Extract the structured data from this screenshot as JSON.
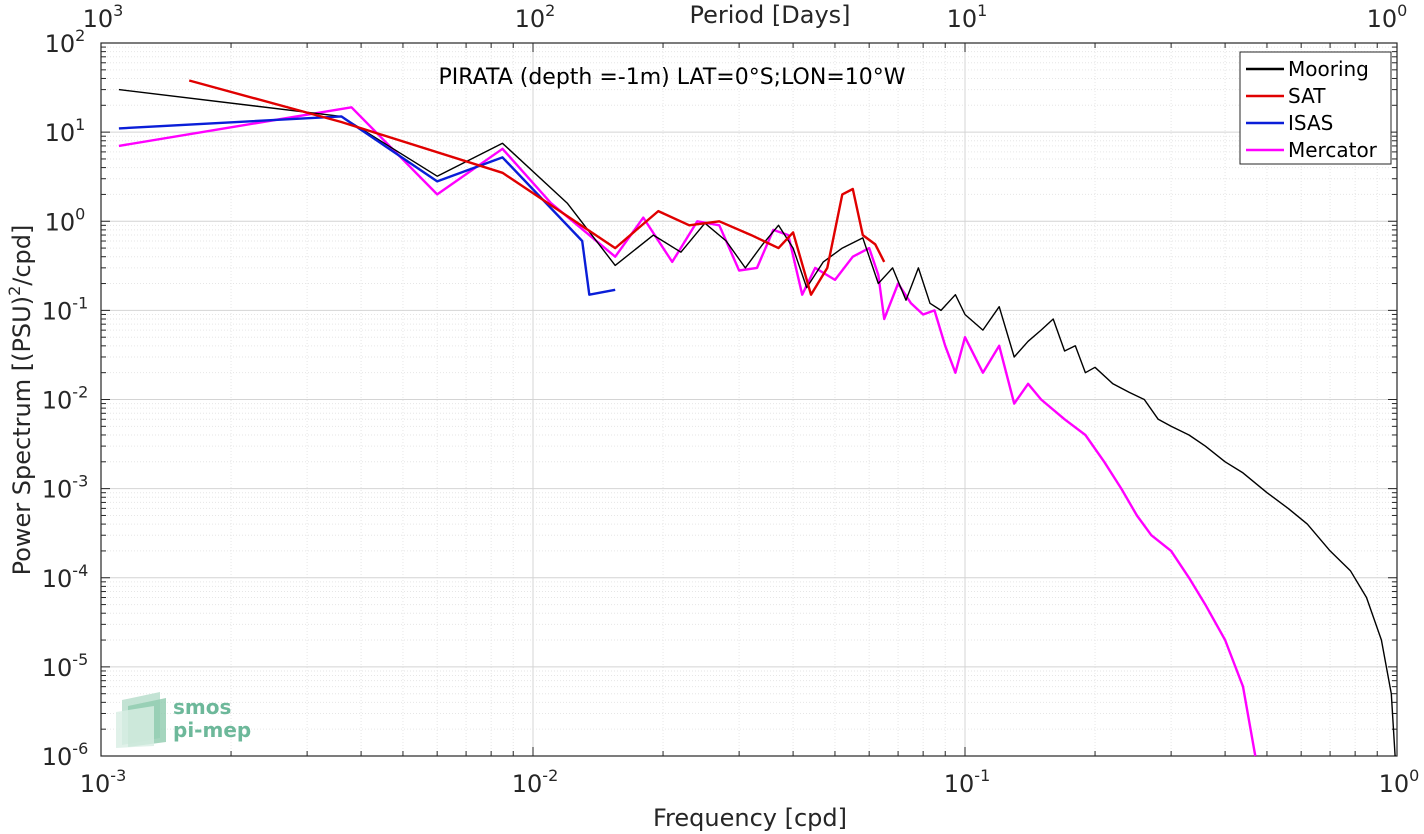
{
  "chart_data": {
    "type": "line",
    "title": "PIRATA (depth =-1m) LAT=0°S;LON=10°W",
    "xlabel": "Frequency [cpd]",
    "ylabel_main": "Power Spectrum [(PSU)",
    "ylabel_sup": "2",
    "ylabel_tail": "/cpd]",
    "top_xlabel": "Period [Days]",
    "xscale": "log",
    "yscale": "log",
    "xlim": [
      0.001,
      1
    ],
    "ylim": [
      1e-06,
      100
    ],
    "grid": true,
    "legend_position": "top-right",
    "x_ticks": [
      {
        "base": "10",
        "exp": "-3"
      },
      {
        "base": "10",
        "exp": "-2"
      },
      {
        "base": "10",
        "exp": "-1"
      },
      {
        "base": "10",
        "exp": "0"
      }
    ],
    "top_ticks": [
      {
        "base": "10",
        "exp": "3"
      },
      {
        "base": "10",
        "exp": "2"
      },
      {
        "base": "10",
        "exp": "1"
      },
      {
        "base": "10",
        "exp": "0"
      }
    ],
    "y_ticks": [
      {
        "base": "10",
        "exp": "-6"
      },
      {
        "base": "10",
        "exp": "-5"
      },
      {
        "base": "10",
        "exp": "-4"
      },
      {
        "base": "10",
        "exp": "-3"
      },
      {
        "base": "10",
        "exp": "-2"
      },
      {
        "base": "10",
        "exp": "-1"
      },
      {
        "base": "10",
        "exp": "0"
      },
      {
        "base": "10",
        "exp": "1"
      },
      {
        "base": "10",
        "exp": "2"
      }
    ],
    "series": [
      {
        "name": "Mooring",
        "color": "#000000",
        "x": [
          0.0011,
          0.0036,
          0.006,
          0.0085,
          0.012,
          0.0155,
          0.019,
          0.022,
          0.025,
          0.028,
          0.031,
          0.034,
          0.037,
          0.04,
          0.043,
          0.047,
          0.052,
          0.058,
          0.063,
          0.068,
          0.073,
          0.078,
          0.083,
          0.088,
          0.095,
          0.1,
          0.11,
          0.12,
          0.13,
          0.14,
          0.15,
          0.16,
          0.17,
          0.18,
          0.19,
          0.2,
          0.22,
          0.24,
          0.26,
          0.28,
          0.3,
          0.33,
          0.36,
          0.4,
          0.44,
          0.5,
          0.56,
          0.62,
          0.7,
          0.78,
          0.85,
          0.92,
          0.97,
          0.99
        ],
        "y": [
          30,
          15,
          3.2,
          7.5,
          1.6,
          0.32,
          0.7,
          0.45,
          0.95,
          0.6,
          0.3,
          0.55,
          0.9,
          0.5,
          0.18,
          0.35,
          0.5,
          0.65,
          0.2,
          0.3,
          0.13,
          0.3,
          0.12,
          0.1,
          0.15,
          0.09,
          0.06,
          0.11,
          0.03,
          0.045,
          0.06,
          0.08,
          0.035,
          0.04,
          0.02,
          0.023,
          0.015,
          0.012,
          0.01,
          0.006,
          0.005,
          0.004,
          0.003,
          0.002,
          0.0015,
          0.0009,
          0.0006,
          0.0004,
          0.0002,
          0.00012,
          6e-05,
          2e-05,
          5e-06,
          1e-06
        ]
      },
      {
        "name": "SAT",
        "color": "#e00000",
        "x": [
          0.0016,
          0.0036,
          0.0085,
          0.0155,
          0.0195,
          0.023,
          0.027,
          0.032,
          0.037,
          0.04,
          0.044,
          0.048,
          0.052,
          0.055,
          0.058,
          0.062,
          0.065
        ],
        "y": [
          38,
          13,
          3.5,
          0.5,
          1.3,
          0.9,
          1.0,
          0.7,
          0.5,
          0.75,
          0.15,
          0.3,
          2.0,
          2.3,
          0.7,
          0.55,
          0.35
        ]
      },
      {
        "name": "ISAS",
        "color": "#0a1ed8",
        "x": [
          0.0011,
          0.0036,
          0.006,
          0.0085,
          0.013,
          0.0135,
          0.0155
        ],
        "y": [
          11,
          15,
          2.8,
          5.2,
          0.6,
          0.15,
          0.17
        ]
      },
      {
        "name": "Mercator",
        "color": "#ff00ff",
        "x": [
          0.0011,
          0.0038,
          0.006,
          0.0085,
          0.011,
          0.0155,
          0.018,
          0.021,
          0.024,
          0.027,
          0.03,
          0.033,
          0.036,
          0.039,
          0.042,
          0.045,
          0.05,
          0.055,
          0.06,
          0.063,
          0.065,
          0.07,
          0.075,
          0.08,
          0.085,
          0.09,
          0.095,
          0.1,
          0.11,
          0.12,
          0.13,
          0.14,
          0.15,
          0.17,
          0.19,
          0.21,
          0.23,
          0.25,
          0.27,
          0.3,
          0.33,
          0.36,
          0.4,
          0.44,
          0.47
        ],
        "y": [
          7,
          19,
          2,
          6.5,
          1.6,
          0.4,
          1.1,
          0.35,
          1.0,
          0.9,
          0.28,
          0.3,
          0.8,
          0.7,
          0.15,
          0.3,
          0.22,
          0.4,
          0.5,
          0.25,
          0.08,
          0.2,
          0.12,
          0.09,
          0.1,
          0.04,
          0.02,
          0.05,
          0.02,
          0.04,
          0.009,
          0.015,
          0.01,
          0.006,
          0.004,
          0.002,
          0.001,
          0.0005,
          0.0003,
          0.0002,
          0.0001,
          5e-05,
          2e-05,
          6e-06,
          1e-06
        ]
      }
    ]
  },
  "logo": {
    "line1": "smos",
    "line2": "pi-mep"
  }
}
